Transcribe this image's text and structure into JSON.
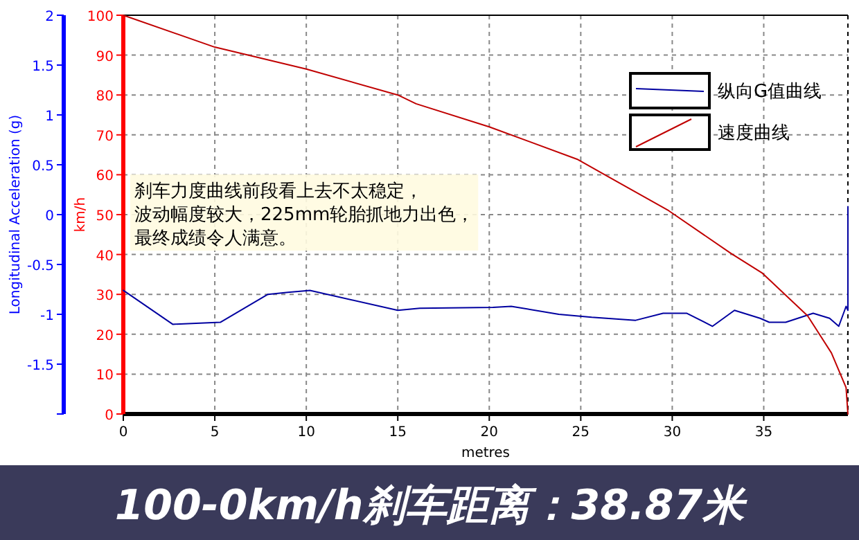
{
  "chart_data": {
    "type": "line",
    "title": "100-0km/h刹车距离：38.87米",
    "xlabel": "metres",
    "ylabel": "km/h",
    "y2label": "Longitudinal Acceleration (g)",
    "annotations": [
      "刹车力度曲线前段看上去不太稳定，",
      "波动幅度较大，225mm轮胎抓地力出色，",
      "最终成绩令人满意。"
    ],
    "xlim": [
      0,
      39.6
    ],
    "xticks": [
      0,
      5,
      10,
      15,
      20,
      25,
      30,
      35
    ],
    "ylim": [
      0,
      100
    ],
    "yticks": [
      0,
      10,
      20,
      30,
      40,
      50,
      60,
      70,
      80,
      90,
      100
    ],
    "y2lim": [
      -2,
      2
    ],
    "y2ticks": [
      {
        "value": -2,
        "label": null
      },
      -1.5,
      -1,
      -0.5,
      0,
      0.5,
      1,
      1.5,
      2
    ],
    "grid": true,
    "legend": "top right",
    "line_style": "solid",
    "series": [
      {
        "name": "纵向G值曲线",
        "color": "#0000a0",
        "axis": "y2",
        "x": [
          0,
          2.7,
          5.3,
          7.9,
          9,
          10.2,
          15,
          16.2,
          20.2,
          21.2,
          23.8,
          25.6,
          28,
          29.5,
          30.8,
          32.2,
          33.4,
          34.8,
          35.3,
          36.2,
          37.7,
          38.6,
          39.1,
          39.5,
          39.6,
          39.6
        ],
        "values": [
          -0.76,
          -1.1,
          -1.08,
          -0.8,
          -0.78,
          -0.76,
          -0.96,
          -0.94,
          -0.93,
          -0.92,
          -1,
          -1.03,
          -1.06,
          -0.99,
          -0.99,
          -1.12,
          -0.96,
          -1.04,
          -1.08,
          -1.08,
          -0.99,
          -1.04,
          -1.12,
          -0.92,
          -0.96,
          0.08
        ]
      },
      {
        "name": "速度曲线",
        "color": "#c00000",
        "x": [
          0,
          5,
          10,
          15,
          16,
          20,
          24.8,
          29.8,
          33.2,
          34.9,
          37.4,
          38.7,
          39.5,
          39.6
        ],
        "values": [
          100,
          92,
          86.5,
          80,
          77.8,
          72,
          63.9,
          51,
          40.3,
          35.4,
          24.6,
          15.3,
          6.6,
          0
        ]
      }
    ]
  }
}
